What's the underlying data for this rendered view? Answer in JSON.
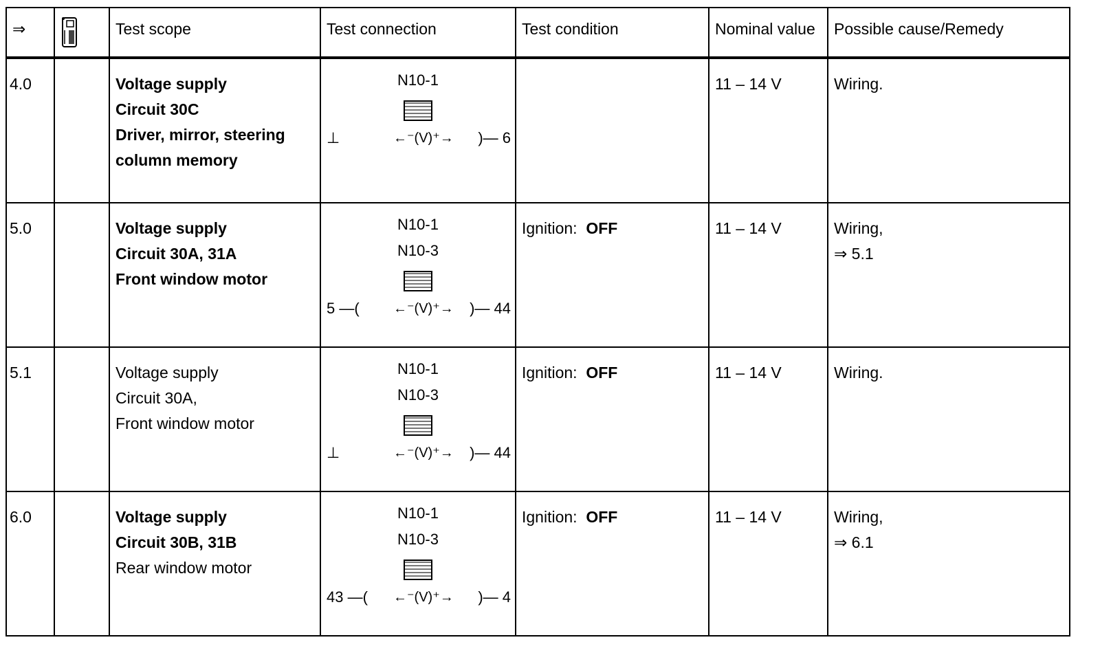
{
  "header": {
    "arrow": "⇒",
    "tester_icon": "multimeter-icon",
    "test_scope": "Test scope",
    "test_connection": "Test connection",
    "test_condition": "Test condition",
    "nominal_value": "Nominal value",
    "remedy": "Possible cause/Remedy"
  },
  "rows": [
    {
      "id": "4.0",
      "scope": [
        {
          "t": "Voltage supply",
          "b": true
        },
        {
          "t": "Circuit 30C",
          "b": true
        },
        {
          "t": "Driver, mirror, steering",
          "b": true
        },
        {
          "t": "column memory",
          "b": true
        }
      ],
      "conn": {
        "labels": [
          "N10-1"
        ],
        "left": "⊥",
        "right": ")— 6"
      },
      "cond_label": "",
      "cond_value": "",
      "nominal": "11 – 14 V",
      "remedy": [
        "Wiring."
      ]
    },
    {
      "id": "5.0",
      "scope": [
        {
          "t": "Voltage supply",
          "b": true
        },
        {
          "t": "Circuit 30A, 31A",
          "b": true
        },
        {
          "t": "Front window motor",
          "b": true
        }
      ],
      "conn": {
        "labels": [
          "N10-1",
          "N10-3"
        ],
        "left": "5 —(",
        "right": ")— 44"
      },
      "cond_label": "Ignition:",
      "cond_value": "OFF",
      "nominal": "11 – 14 V",
      "remedy": [
        "Wiring,",
        "⇒ 5.1"
      ]
    },
    {
      "id": "5.1",
      "scope": [
        {
          "t": "Voltage supply",
          "b": false
        },
        {
          "t": "Circuit 30A,",
          "b": false
        },
        {
          "t": "Front window motor",
          "b": false
        }
      ],
      "conn": {
        "labels": [
          "N10-1",
          "N10-3"
        ],
        "left": "⊥",
        "right": ")— 44"
      },
      "cond_label": "Ignition:",
      "cond_value": "OFF",
      "nominal": "11 – 14 V",
      "remedy": [
        "Wiring."
      ]
    },
    {
      "id": "6.0",
      "scope": [
        {
          "t": "Voltage supply",
          "b": true
        },
        {
          "t": "Circuit 30B, 31B",
          "b": true
        },
        {
          "t": "Rear window motor",
          "b": false
        }
      ],
      "conn": {
        "labels": [
          "N10-1",
          "N10-3"
        ],
        "left": "43 —(",
        "right": ")— 4"
      },
      "cond_label": "Ignition:",
      "cond_value": "OFF",
      "nominal": "11 – 14 V",
      "remedy": [
        "Wiring,",
        "⇒ 6.1"
      ]
    }
  ],
  "meter_symbol": "←⁻(V)⁺→"
}
